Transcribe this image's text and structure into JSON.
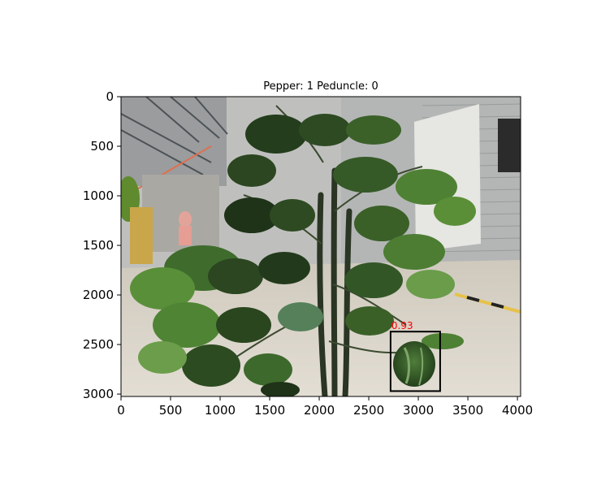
{
  "chart_data": {
    "type": "image",
    "title": "Pepper: 1 Peduncle: 0",
    "xlim": [
      0,
      4032
    ],
    "ylim": [
      3024,
      0
    ],
    "xticks": [
      0,
      500,
      1000,
      1500,
      2000,
      2500,
      3000,
      3500,
      4000
    ],
    "yticks": [
      0,
      500,
      1000,
      1500,
      2000,
      2500,
      3000
    ],
    "detections": [
      {
        "label": "0.93",
        "x0": 2720,
        "y0": 2370,
        "x1": 3220,
        "y1": 2970,
        "color": "#000000",
        "label_color": "#ff0000"
      }
    ]
  },
  "scene": {
    "icon": "plant-photo",
    "colors": {
      "floor": "#d8d2c6",
      "wall": "#c9c9c7",
      "leaf_dark": "#20381a",
      "leaf_mid": "#3c6a2c",
      "leaf_light": "#6e9e4c",
      "pepper": "#3e5a32"
    }
  }
}
